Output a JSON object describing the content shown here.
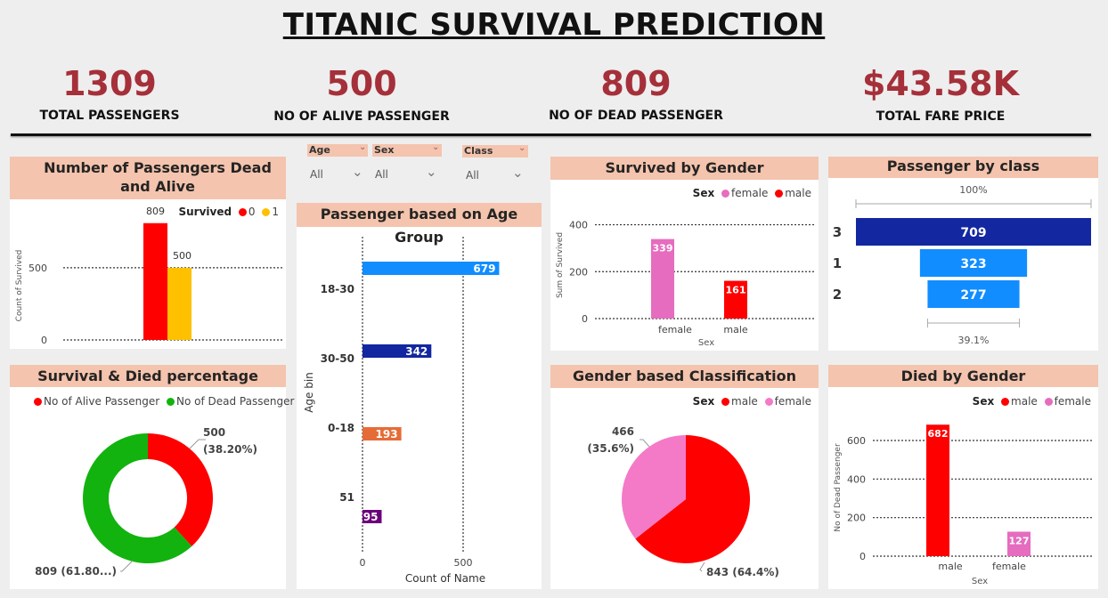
{
  "title": "TITANIC SURVIVAL PREDICTION",
  "kpis": [
    {
      "value": "1309",
      "label": "TOTAL PASSENGERS"
    },
    {
      "value": "500",
      "label": "NO OF ALIVE PASSENGER"
    },
    {
      "value": "809",
      "label": "NO OF DEAD PASSENGER"
    },
    {
      "value": "$43.58K",
      "label": "TOTAL FARE PRICE"
    }
  ],
  "slicers": [
    {
      "label": "Age",
      "value": "All"
    },
    {
      "label": "Sex",
      "value": "All"
    },
    {
      "label": "Class",
      "value": "All"
    }
  ],
  "colors": {
    "accent": "#a5303a",
    "header": "#f4c4ae",
    "red": "#ff0000",
    "yellow": "#ffc000",
    "green": "#12b30e",
    "pink": "#e66cbf",
    "navy": "#1327a0",
    "blue": "#118dff"
  },
  "chart_data": [
    {
      "id": "dead-alive",
      "type": "bar",
      "title": "Number of Passengers Dead and Alive",
      "legend_title": "Survived",
      "ylabel": "Count of Survived",
      "yticks": [
        0,
        500
      ],
      "ylim": [
        0,
        900
      ],
      "series": [
        {
          "name": "0",
          "value": 809,
          "color": "#ff0000"
        },
        {
          "name": "1",
          "value": 500,
          "color": "#ffc000"
        }
      ]
    },
    {
      "id": "age-group",
      "type": "bar",
      "orientation": "horizontal",
      "title": "Passenger based on Age Group",
      "xlabel": "Count of Name",
      "ylabel": "Age bin",
      "xticks": [
        0,
        500
      ],
      "categories": [
        "18-30",
        "30-50",
        "0-18",
        "51"
      ],
      "values": [
        679,
        342,
        193,
        95
      ],
      "colors": [
        "#118dff",
        "#1327a0",
        "#e66c37",
        "#6b007b"
      ]
    },
    {
      "id": "survived-gender",
      "type": "bar",
      "title": "Survived by Gender",
      "legend_title": "Sex",
      "xlabel": "Sex",
      "ylabel": "Sum of Survived",
      "yticks": [
        0,
        200,
        400
      ],
      "ylim": [
        0,
        440
      ],
      "categories": [
        "female",
        "male"
      ],
      "values": [
        339,
        161
      ],
      "colors": [
        "#e66cbf",
        "#ff0000"
      ]
    },
    {
      "id": "by-class",
      "type": "bar",
      "subtype": "funnel",
      "title": "Passenger by class",
      "top_label": "100%",
      "bottom_label": "39.1%",
      "categories": [
        "3",
        "1",
        "2"
      ],
      "values": [
        709,
        323,
        277
      ],
      "colors": [
        "#1327a0",
        "#118dff",
        "#118dff"
      ]
    },
    {
      "id": "survival-pct",
      "type": "pie",
      "subtype": "donut",
      "title": "Survival & Died percentage",
      "slices": [
        {
          "name": "No of Alive Passenger",
          "value": 500,
          "label": "500",
          "pct_label": "(38.20%)",
          "color": "#ff0000"
        },
        {
          "name": "No of Dead Passenger",
          "value": 809,
          "label": "809 (61.80...)",
          "pct_label": "",
          "color": "#12b30e"
        }
      ]
    },
    {
      "id": "gender-class",
      "type": "pie",
      "title": "Gender based Classification",
      "legend_title": "Sex",
      "slices": [
        {
          "name": "male",
          "value": 843,
          "label": "843 (64.4%)",
          "pct_label": "",
          "color": "#ff0000"
        },
        {
          "name": "female",
          "value": 466,
          "label": "466",
          "pct_label": "(35.6%)",
          "color": "#f47ac7"
        }
      ]
    },
    {
      "id": "died-gender",
      "type": "bar",
      "title": "Died by Gender",
      "legend_title": "Sex",
      "xlabel": "Sex",
      "ylabel": "No of Dead Passenger",
      "yticks": [
        0,
        200,
        400,
        600
      ],
      "ylim": [
        0,
        720
      ],
      "categories": [
        "male",
        "female"
      ],
      "values": [
        682,
        127
      ],
      "colors": [
        "#ff0000",
        "#e66cbf"
      ]
    }
  ]
}
